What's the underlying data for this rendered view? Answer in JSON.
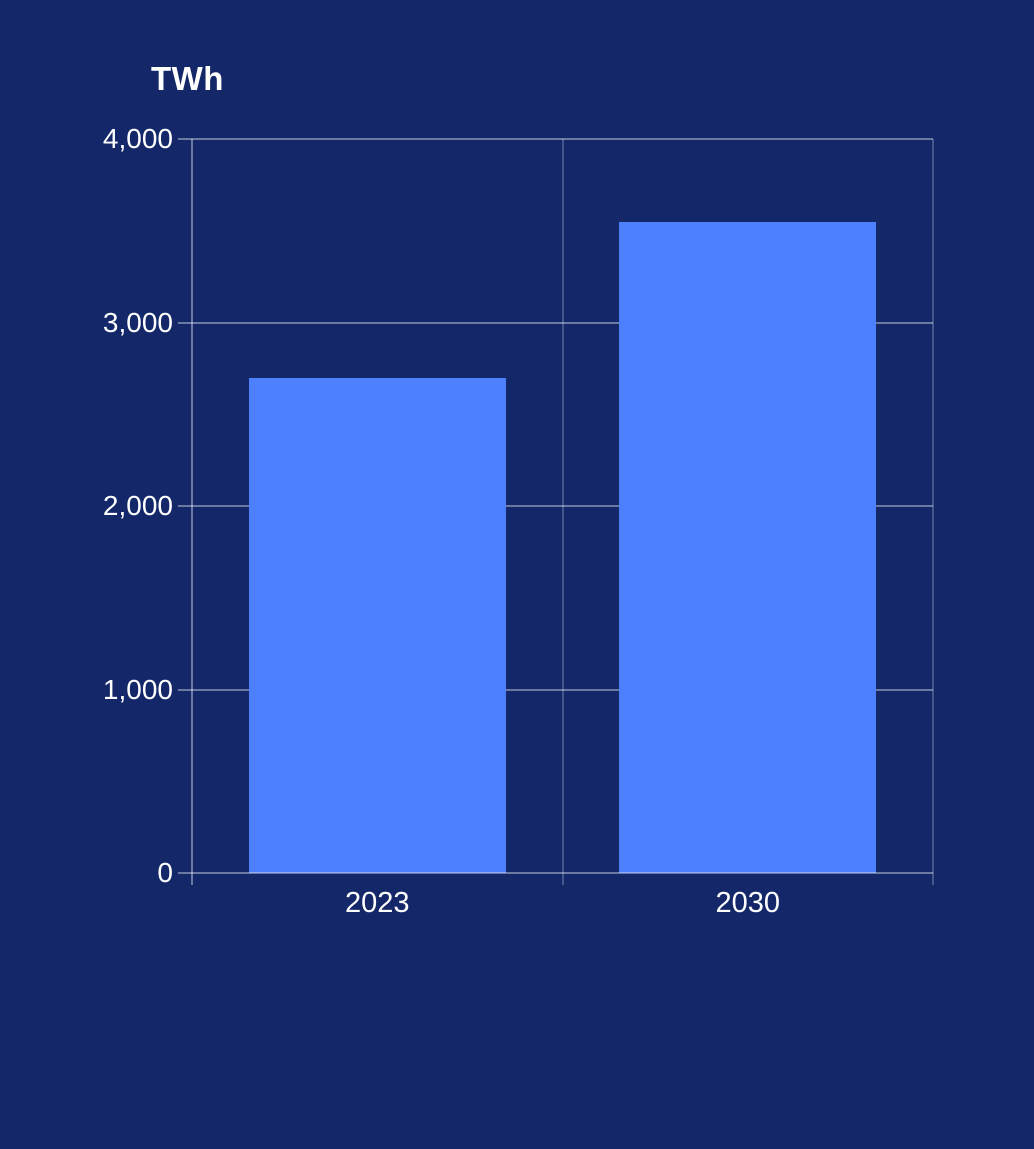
{
  "colors": {
    "background": "#132769",
    "bar": "#4D80FC",
    "text": "#FFFFFF",
    "gridline_horizontal": "rgba(255,255,255,0.38)",
    "gridline_vertical": "rgba(255,255,255,0.22)"
  },
  "chart_data": {
    "type": "bar",
    "title": "TWh",
    "ylabel": "TWh",
    "xlabel": "",
    "categories": [
      "2023",
      "2030"
    ],
    "series": [
      {
        "name": "TWh",
        "values": [
          2700,
          3550
        ]
      }
    ],
    "values": [
      2700,
      3550
    ],
    "ylim": [
      0,
      4000
    ],
    "yticks": [
      0,
      1000,
      2000,
      3000,
      4000
    ],
    "ytick_labels": [
      "0",
      "1,000",
      "2,000",
      "3,000",
      "4,000"
    ],
    "grid": "horizontal major gridlines; vertical lines at category boundaries",
    "legend": "none",
    "bar_color": "#4D80FC",
    "background_color": "#132769"
  }
}
